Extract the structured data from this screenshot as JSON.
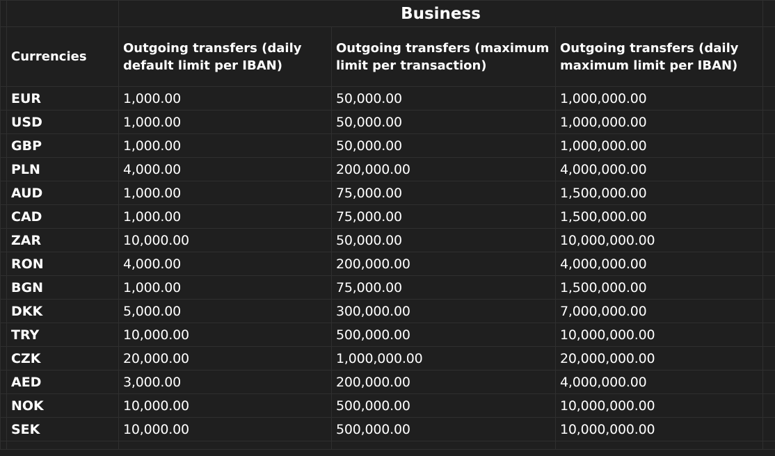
{
  "table": {
    "group_title": "Business",
    "currencies_header": "Currencies",
    "column_headers": [
      "Outgoing transfers (daily default limit per IBAN)",
      "Outgoing transfers (maximum limit per transaction)",
      "Outgoing transfers (daily maximum limit per IBAN)"
    ],
    "rows": [
      {
        "currency": "EUR",
        "values": [
          "1,000.00",
          "50,000.00",
          "1,000,000.00"
        ]
      },
      {
        "currency": "USD",
        "values": [
          "1,000.00",
          "50,000.00",
          "1,000,000.00"
        ]
      },
      {
        "currency": "GBP",
        "values": [
          "1,000.00",
          "50,000.00",
          "1,000,000.00"
        ]
      },
      {
        "currency": "PLN",
        "values": [
          "4,000.00",
          "200,000.00",
          "4,000,000.00"
        ]
      },
      {
        "currency": "AUD",
        "values": [
          "1,000.00",
          "75,000.00",
          "1,500,000.00"
        ]
      },
      {
        "currency": "CAD",
        "values": [
          "1,000.00",
          "75,000.00",
          "1,500,000.00"
        ]
      },
      {
        "currency": "ZAR",
        "values": [
          "10,000.00",
          "50,000.00",
          "10,000,000.00"
        ]
      },
      {
        "currency": "RON",
        "values": [
          "4,000.00",
          "200,000.00",
          "4,000,000.00"
        ]
      },
      {
        "currency": "BGN",
        "values": [
          "1,000.00",
          "75,000.00",
          "1,500,000.00"
        ]
      },
      {
        "currency": "DKK",
        "values": [
          "5,000.00",
          "300,000.00",
          "7,000,000.00"
        ]
      },
      {
        "currency": "TRY",
        "values": [
          "10,000.00",
          "500,000.00",
          "10,000,000.00"
        ]
      },
      {
        "currency": "CZK",
        "values": [
          "20,000.00",
          "1,000,000.00",
          "20,000,000.00"
        ]
      },
      {
        "currency": "AED",
        "values": [
          "3,000.00",
          "200,000.00",
          "4,000,000.00"
        ]
      },
      {
        "currency": "NOK",
        "values": [
          "10,000.00",
          "500,000.00",
          "10,000,000.00"
        ]
      },
      {
        "currency": "SEK",
        "values": [
          "10,000.00",
          "500,000.00",
          "10,000,000.00"
        ]
      }
    ]
  }
}
